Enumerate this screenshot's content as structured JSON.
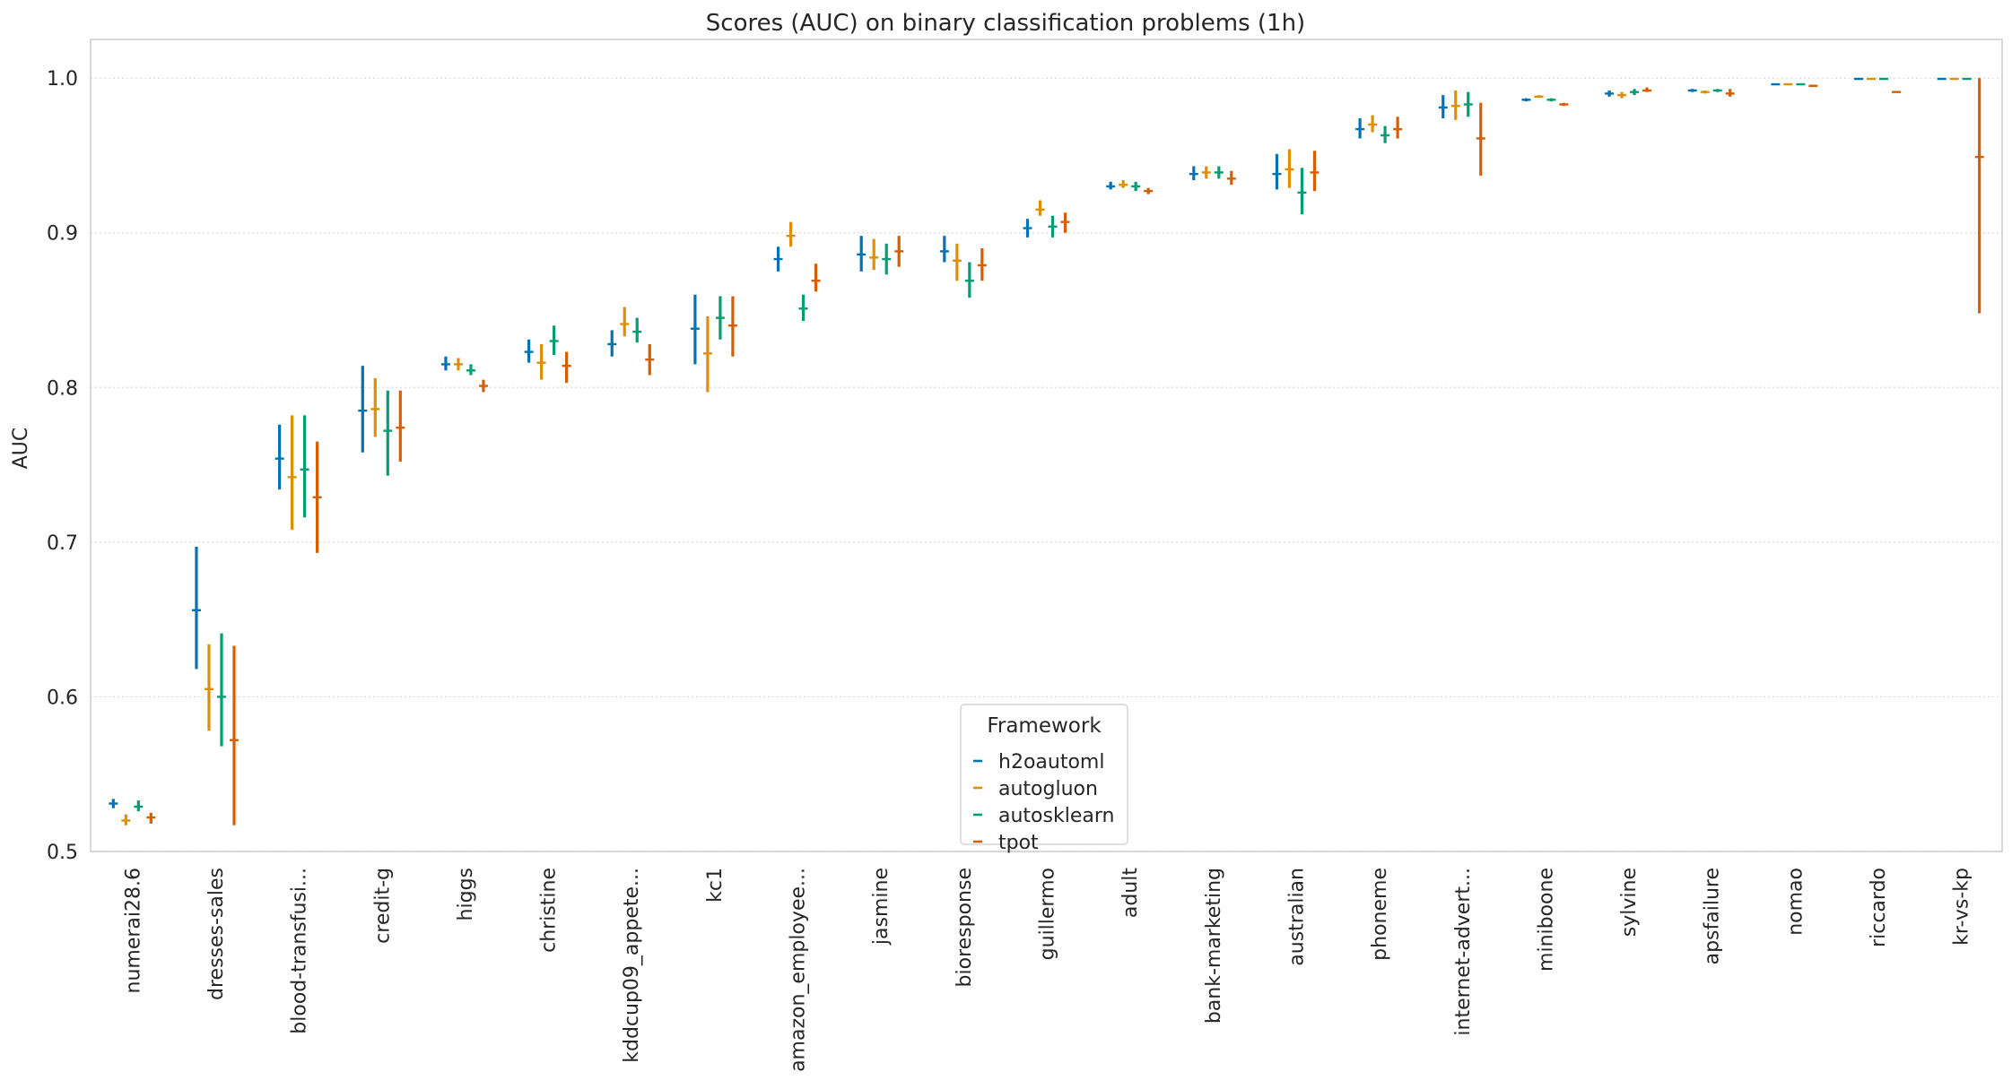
{
  "chart_data": {
    "type": "errorbar",
    "title": "Scores (AUC) on  binary classification problems (1h)",
    "xlabel": "",
    "ylabel": "AUC",
    "ylim": [
      0.5,
      1.025
    ],
    "yticks": [
      0.5,
      0.6,
      0.7,
      0.8,
      0.9,
      1.0
    ],
    "ytick_labels": [
      "0.5",
      "0.6",
      "0.7",
      "0.8",
      "0.9",
      "1.0"
    ],
    "grid": "horizontal",
    "legend": {
      "title": "Framework",
      "placement": "lower center"
    },
    "colors": {
      "h2oautoml": "#0173b2",
      "autogluon": "#de8f05",
      "autosklearn": "#029e73",
      "tpot": "#d55e00"
    },
    "categories": [
      "numerai28.6",
      "dresses-sales",
      "blood-transfusi...",
      "credit-g",
      "higgs",
      "christine",
      "kddcup09_appete...",
      "kc1",
      "amazon_employee...",
      "jasmine",
      "bioresponse",
      "guillermo",
      "adult",
      "bank-marketing",
      "australian",
      "phoneme",
      "internet-advert...",
      "miniboone",
      "sylvine",
      "apsfailure",
      "nomao",
      "riccardo",
      "kr-vs-kp"
    ],
    "series": [
      {
        "name": "h2oautoml",
        "values": [
          0.531,
          0.656,
          0.754,
          0.785,
          0.815,
          0.823,
          0.828,
          0.838,
          0.883,
          0.886,
          0.888,
          0.903,
          0.93,
          0.938,
          0.938,
          0.967,
          0.981,
          0.986,
          0.99,
          0.992,
          0.996,
          0.9995,
          0.9995
        ],
        "low": [
          0.528,
          0.618,
          0.734,
          0.758,
          0.811,
          0.816,
          0.82,
          0.815,
          0.875,
          0.875,
          0.881,
          0.897,
          0.928,
          0.934,
          0.928,
          0.961,
          0.974,
          0.985,
          0.988,
          0.991,
          0.9955,
          0.999,
          0.999
        ],
        "high": [
          0.534,
          0.697,
          0.776,
          0.814,
          0.82,
          0.831,
          0.837,
          0.86,
          0.891,
          0.898,
          0.898,
          0.909,
          0.933,
          0.943,
          0.951,
          0.974,
          0.989,
          0.987,
          0.992,
          0.993,
          0.9965,
          1.0,
          1.0
        ]
      },
      {
        "name": "autogluon",
        "values": [
          0.52,
          0.605,
          0.742,
          0.786,
          0.815,
          0.816,
          0.841,
          0.822,
          0.898,
          0.884,
          0.882,
          0.915,
          0.931,
          0.939,
          0.941,
          0.97,
          0.982,
          0.988,
          0.989,
          0.991,
          0.996,
          0.9995,
          0.9995
        ],
        "low": [
          0.517,
          0.578,
          0.708,
          0.768,
          0.811,
          0.805,
          0.833,
          0.797,
          0.891,
          0.876,
          0.869,
          0.911,
          0.929,
          0.935,
          0.929,
          0.965,
          0.973,
          0.988,
          0.987,
          0.99,
          0.9955,
          0.999,
          0.999
        ],
        "high": [
          0.524,
          0.634,
          0.782,
          0.806,
          0.819,
          0.828,
          0.852,
          0.846,
          0.907,
          0.896,
          0.893,
          0.921,
          0.934,
          0.943,
          0.954,
          0.976,
          0.992,
          0.989,
          0.991,
          0.992,
          0.9965,
          1.0,
          1.0
        ]
      },
      {
        "name": "autosklearn",
        "values": [
          0.529,
          0.6,
          0.747,
          0.772,
          0.811,
          0.83,
          0.836,
          0.845,
          0.851,
          0.883,
          0.869,
          0.904,
          0.93,
          0.939,
          0.926,
          0.963,
          0.983,
          0.986,
          0.991,
          0.992,
          0.996,
          0.9995,
          0.9995
        ],
        "low": [
          0.526,
          0.568,
          0.716,
          0.743,
          0.808,
          0.821,
          0.829,
          0.831,
          0.843,
          0.873,
          0.858,
          0.897,
          0.927,
          0.935,
          0.912,
          0.958,
          0.975,
          0.985,
          0.989,
          0.991,
          0.9955,
          0.999,
          0.999
        ],
        "high": [
          0.533,
          0.641,
          0.782,
          0.798,
          0.815,
          0.84,
          0.845,
          0.859,
          0.86,
          0.893,
          0.881,
          0.911,
          0.933,
          0.943,
          0.942,
          0.969,
          0.991,
          0.987,
          0.993,
          0.993,
          0.9965,
          1.0,
          1.0
        ]
      },
      {
        "name": "tpot",
        "values": [
          0.522,
          0.572,
          0.729,
          0.774,
          0.801,
          0.814,
          0.818,
          0.84,
          0.869,
          0.888,
          0.879,
          0.907,
          0.927,
          0.935,
          0.939,
          0.967,
          0.961,
          0.983,
          0.992,
          0.99,
          0.995,
          0.991,
          0.949
        ],
        "low": [
          0.518,
          0.517,
          0.693,
          0.752,
          0.797,
          0.803,
          0.808,
          0.82,
          0.862,
          0.878,
          0.869,
          0.9,
          0.925,
          0.931,
          0.927,
          0.961,
          0.937,
          0.982,
          0.991,
          0.988,
          0.9945,
          0.991,
          0.848
        ],
        "high": [
          0.525,
          0.633,
          0.765,
          0.798,
          0.805,
          0.823,
          0.828,
          0.859,
          0.88,
          0.898,
          0.89,
          0.913,
          0.929,
          0.94,
          0.953,
          0.975,
          0.984,
          0.984,
          0.994,
          0.993,
          0.9958,
          0.991,
          1.0
        ]
      }
    ]
  }
}
